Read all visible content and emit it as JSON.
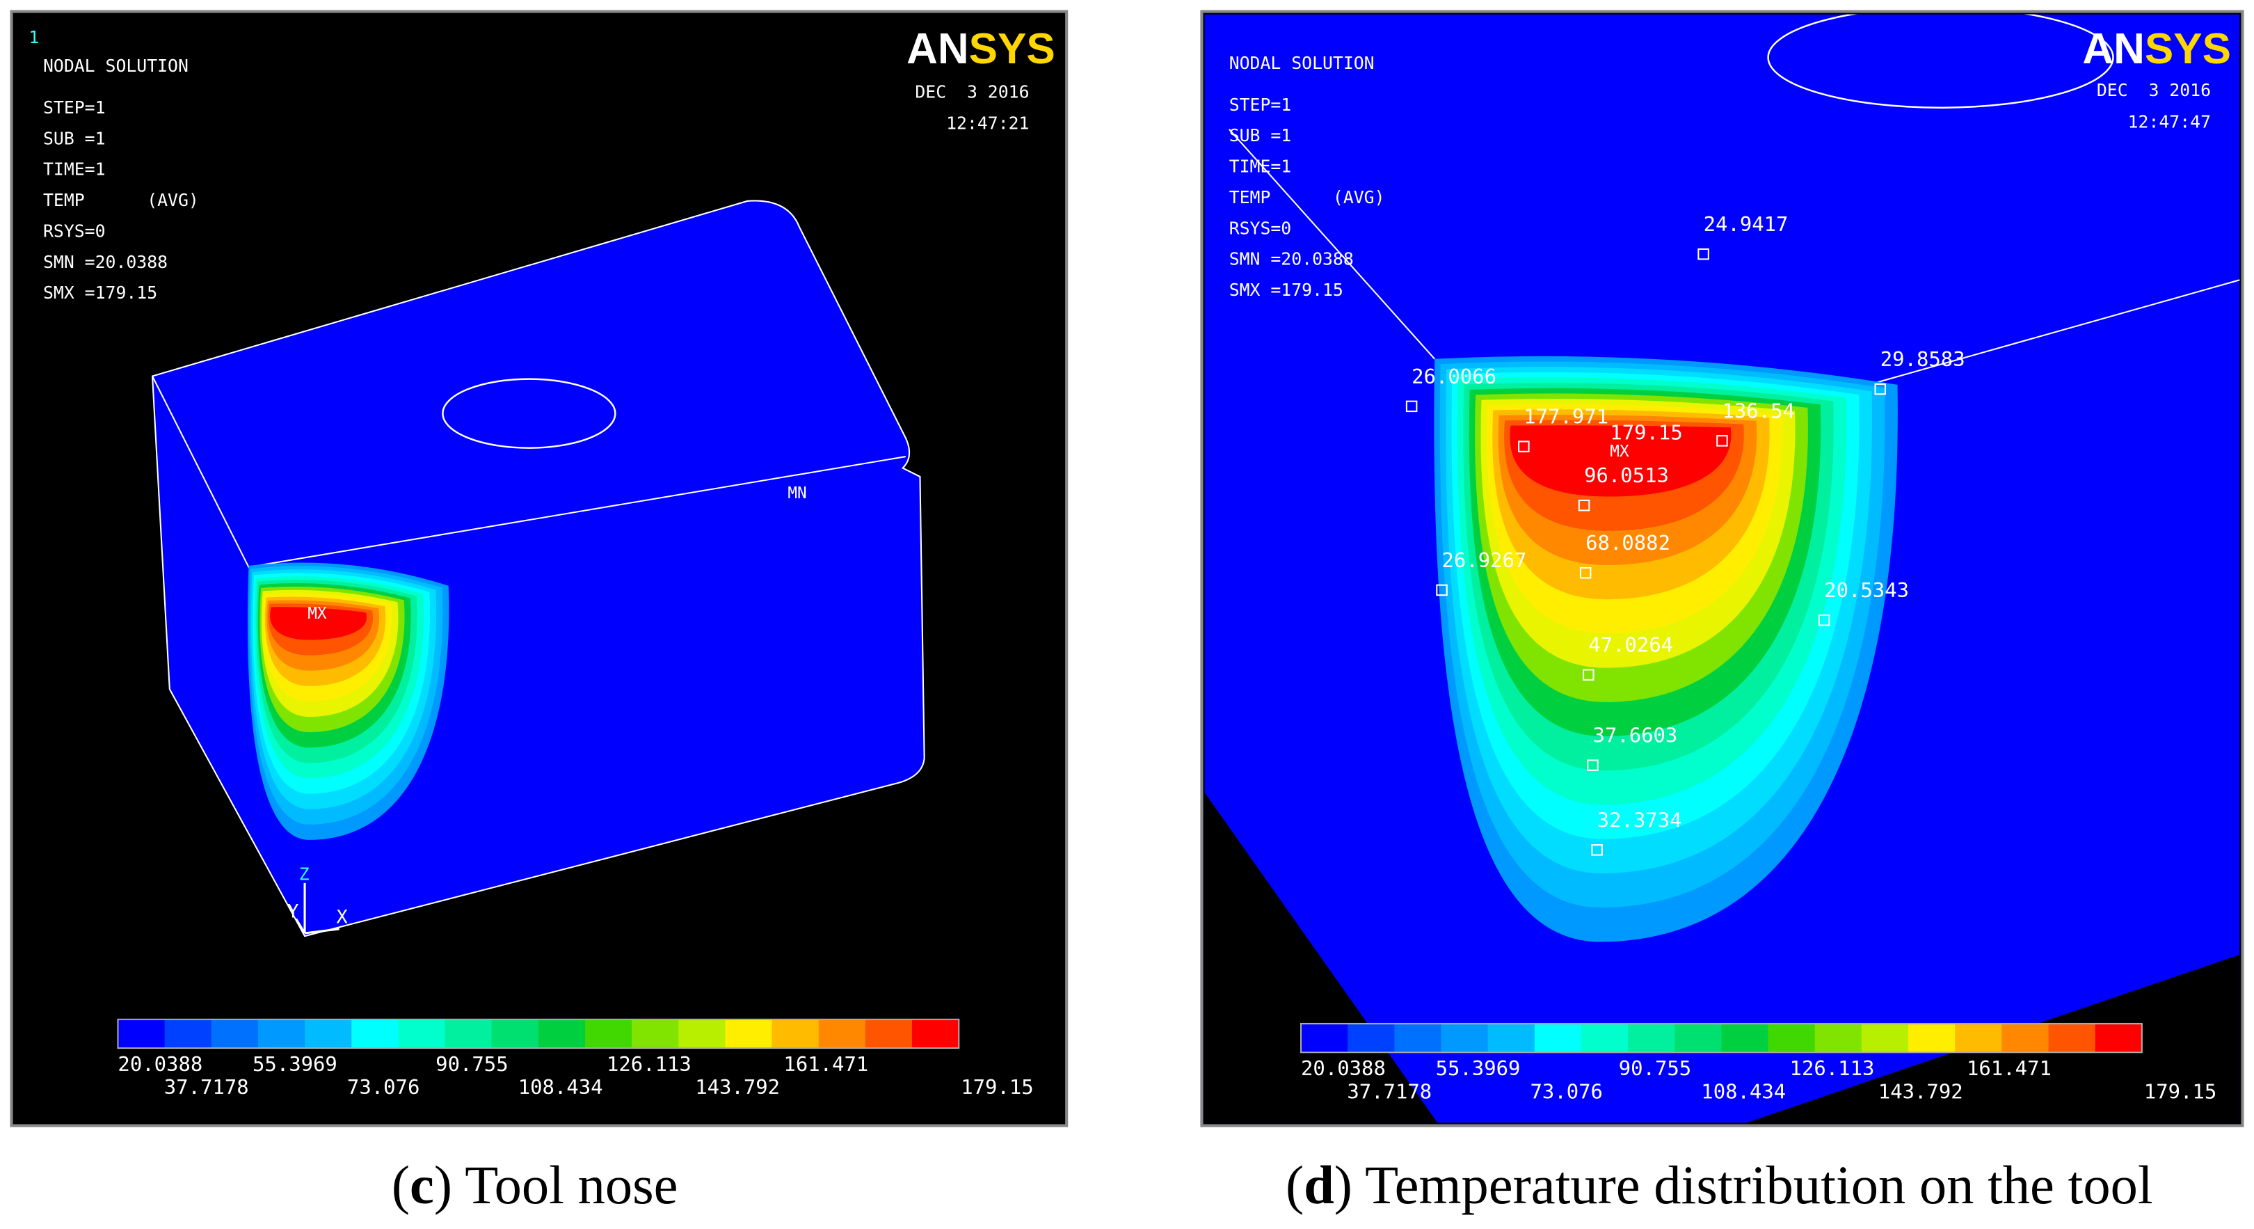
{
  "panels": [
    {
      "frame_number": "1",
      "title": "NODAL SOLUTION",
      "info": [
        "STEP=1",
        "SUB =1",
        "TIME=1",
        "TEMP      (AVG)",
        "RSYS=0",
        "SMN =20.0388",
        "SMX =179.15"
      ],
      "logo": [
        "AN",
        "SYS"
      ],
      "date": "DEC  3 2016",
      "time": "12:47:21",
      "min_marker": "MN",
      "max_marker": "MX",
      "axes": [
        "Z",
        "Y",
        "X"
      ],
      "legend": [
        "20.0388",
        "37.7178",
        "55.3969",
        "73.076",
        "90.755",
        "108.434",
        "126.113",
        "143.792",
        "161.471",
        "179.15"
      ],
      "caption": {
        "open": "(",
        "letter": "c",
        "rest": ") Tool nose"
      }
    },
    {
      "title": "NODAL SOLUTION",
      "info": [
        "STEP=1",
        "SUB =1",
        "TIME=1",
        "TEMP      (AVG)",
        "RSYS=0",
        "SMN =20.0388",
        "SMX =179.15"
      ],
      "logo": [
        "AN",
        "SYS"
      ],
      "date": "DEC  3 2016",
      "time": "12:47:47",
      "max_marker": "MX",
      "probes": [
        "24.9417",
        "26.0066",
        "29.8583",
        "177.971",
        "179.15",
        "136.54",
        "96.0513",
        "68.0882",
        "26.9267",
        "20.5343",
        "47.0264",
        "37.6603",
        "32.3734"
      ],
      "legend": [
        "20.0388",
        "37.7178",
        "55.3969",
        "73.076",
        "90.755",
        "108.434",
        "126.113",
        "143.792",
        "161.471",
        "179.15"
      ],
      "caption": {
        "open": "(",
        "letter": "d",
        "rest": ") Temperature distribution on the tool"
      }
    }
  ]
}
